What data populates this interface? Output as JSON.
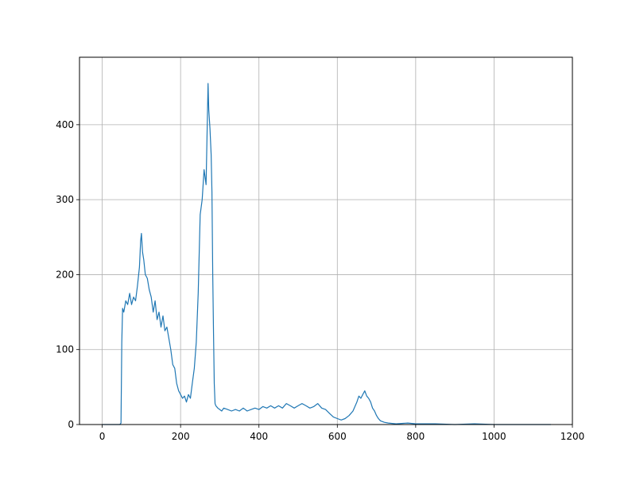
{
  "chart_data": {
    "type": "line",
    "title": "",
    "xlabel": "",
    "ylabel": "",
    "xlim": [
      -58,
      1200
    ],
    "ylim": [
      0,
      490
    ],
    "xticks": [
      0,
      200,
      400,
      600,
      800,
      1000,
      1200
    ],
    "yticks": [
      0,
      100,
      200,
      300,
      400
    ],
    "xtick_labels": [
      "0",
      "200",
      "400",
      "600",
      "800",
      "1000",
      "1200"
    ],
    "ytick_labels": [
      "0",
      "100",
      "200",
      "300",
      "400"
    ],
    "grid": true,
    "legend": "none",
    "series_color": "#1f77b4",
    "grid_color": "#b0b0b0",
    "series": [
      {
        "x": [
          0,
          45,
          48,
          50,
          52,
          55,
          60,
          65,
          70,
          75,
          80,
          85,
          90,
          95,
          98,
          100,
          103,
          106,
          110,
          115,
          120,
          125,
          130,
          135,
          140,
          145,
          150,
          155,
          160,
          165,
          170,
          175,
          180,
          185,
          190,
          195,
          200,
          205,
          210,
          215,
          220,
          225,
          230,
          235,
          240,
          245,
          250,
          255,
          260,
          265,
          268,
          270,
          272,
          275,
          278,
          280,
          282,
          284,
          286,
          288,
          290,
          295,
          300,
          305,
          310,
          320,
          330,
          340,
          350,
          360,
          370,
          380,
          390,
          400,
          410,
          420,
          430,
          440,
          450,
          460,
          470,
          480,
          490,
          500,
          510,
          520,
          530,
          540,
          550,
          560,
          570,
          580,
          590,
          600,
          610,
          620,
          630,
          640,
          650,
          655,
          660,
          665,
          670,
          675,
          680,
          685,
          690,
          695,
          700,
          705,
          710,
          720,
          730,
          750,
          780,
          800,
          830,
          850,
          900,
          950,
          1000,
          1050,
          1100,
          1145
        ],
        "y": [
          0,
          0,
          2,
          110,
          155,
          150,
          165,
          160,
          175,
          160,
          170,
          165,
          185,
          210,
          245,
          255,
          230,
          220,
          200,
          195,
          180,
          170,
          150,
          165,
          140,
          150,
          130,
          145,
          125,
          130,
          115,
          100,
          80,
          75,
          55,
          45,
          40,
          35,
          38,
          30,
          40,
          35,
          55,
          75,
          110,
          175,
          280,
          300,
          340,
          320,
          400,
          455,
          420,
          395,
          360,
          310,
          200,
          120,
          55,
          28,
          25,
          22,
          20,
          18,
          22,
          20,
          18,
          20,
          18,
          22,
          18,
          20,
          22,
          20,
          24,
          22,
          25,
          22,
          25,
          22,
          28,
          25,
          22,
          25,
          28,
          25,
          22,
          24,
          28,
          22,
          20,
          15,
          10,
          8,
          6,
          8,
          12,
          18,
          30,
          38,
          35,
          40,
          45,
          38,
          35,
          30,
          22,
          18,
          12,
          8,
          5,
          3,
          2,
          1,
          2,
          1,
          1,
          1,
          0,
          1,
          0,
          0,
          0,
          0
        ]
      }
    ]
  }
}
